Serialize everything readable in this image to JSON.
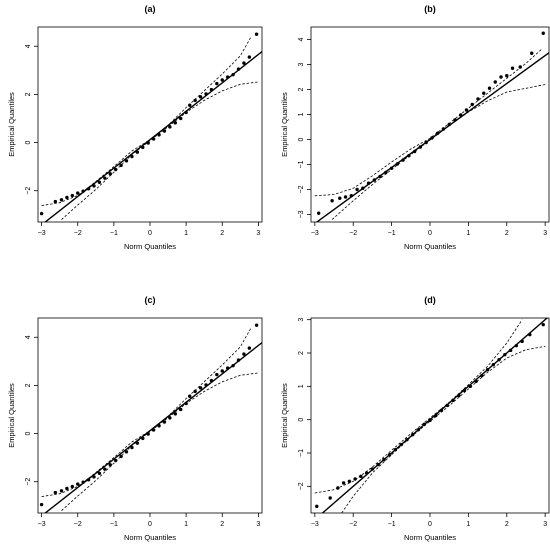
{
  "chart_data": [
    {
      "type": "scatter",
      "title": "(a)",
      "xlabel": "Norm Quantiles",
      "ylabel": "Empirical Quantiles",
      "xlim": [
        -3.1,
        3.1
      ],
      "ylim": [
        -3.3,
        4.8
      ],
      "xticks": [
        -3,
        -2,
        -1,
        0,
        1,
        2,
        3
      ],
      "yticks": [
        -2,
        0,
        2,
        4
      ],
      "ref_line": {
        "intercept": 0.12,
        "slope": 1.18
      },
      "envelope": {
        "lower": [
          [
            -2.45,
            -3.2
          ],
          [
            -2.0,
            -2.6
          ],
          [
            -1.5,
            -1.95
          ],
          [
            -1.0,
            -1.23
          ],
          [
            -0.5,
            -0.5
          ],
          [
            0,
            0.08
          ],
          [
            0.5,
            0.66
          ],
          [
            1.0,
            1.25
          ],
          [
            1.5,
            1.75
          ],
          [
            2.0,
            2.15
          ],
          [
            2.5,
            2.42
          ],
          [
            3.0,
            2.52
          ]
        ],
        "upper": [
          [
            -3.0,
            -2.62
          ],
          [
            -2.5,
            -2.5
          ],
          [
            -2.0,
            -2.2
          ],
          [
            -1.5,
            -1.62
          ],
          [
            -1.0,
            -1.0
          ],
          [
            -0.5,
            -0.35
          ],
          [
            0,
            0.12
          ],
          [
            0.5,
            0.72
          ],
          [
            1.0,
            1.45
          ],
          [
            1.5,
            2.15
          ],
          [
            2.0,
            2.85
          ],
          [
            2.5,
            3.6
          ],
          [
            2.8,
            4.4
          ]
        ]
      },
      "points": [
        [
          -3.0,
          -2.95
        ],
        [
          -2.62,
          -2.45
        ],
        [
          -2.45,
          -2.38
        ],
        [
          -2.3,
          -2.28
        ],
        [
          -2.15,
          -2.2
        ],
        [
          -2.0,
          -2.1
        ],
        [
          -1.85,
          -2.02
        ],
        [
          -1.7,
          -1.92
        ],
        [
          -1.55,
          -1.8
        ],
        [
          -1.4,
          -1.65
        ],
        [
          -1.25,
          -1.48
        ],
        [
          -1.1,
          -1.3
        ],
        [
          -0.95,
          -1.12
        ],
        [
          -0.8,
          -0.95
        ],
        [
          -0.65,
          -0.76
        ],
        [
          -0.5,
          -0.58
        ],
        [
          -0.35,
          -0.4
        ],
        [
          -0.2,
          -0.2
        ],
        [
          -0.05,
          -0.02
        ],
        [
          0.1,
          0.15
        ],
        [
          0.25,
          0.32
        ],
        [
          0.4,
          0.48
        ],
        [
          0.55,
          0.65
        ],
        [
          0.7,
          0.82
        ],
        [
          0.85,
          1.0
        ],
        [
          1.0,
          1.25
        ],
        [
          1.1,
          1.55
        ],
        [
          1.25,
          1.75
        ],
        [
          1.4,
          1.9
        ],
        [
          1.55,
          2.02
        ],
        [
          1.7,
          2.2
        ],
        [
          1.85,
          2.45
        ],
        [
          2.0,
          2.6
        ],
        [
          2.15,
          2.72
        ],
        [
          2.3,
          2.82
        ],
        [
          2.45,
          3.05
        ],
        [
          2.6,
          3.3
        ],
        [
          2.75,
          3.55
        ],
        [
          2.95,
          4.5
        ]
      ]
    },
    {
      "type": "scatter",
      "title": "(b)",
      "xlabel": "Norm Quantiles",
      "ylabel": "Empirical Quantiles",
      "xlim": [
        -3.1,
        3.1
      ],
      "ylim": [
        -3.3,
        4.5
      ],
      "xticks": [
        -3,
        -2,
        -1,
        0,
        1,
        2,
        3
      ],
      "yticks": [
        -3,
        -2,
        -1,
        0,
        1,
        2,
        3,
        4
      ],
      "ref_line": {
        "intercept": 0.0,
        "slope": 1.12
      },
      "envelope": {
        "lower": [
          [
            -2.55,
            -3.2
          ],
          [
            -2.0,
            -2.45
          ],
          [
            -1.5,
            -1.8
          ],
          [
            -1.0,
            -1.2
          ],
          [
            -0.5,
            -0.6
          ],
          [
            0,
            -0.02
          ],
          [
            0.5,
            0.55
          ],
          [
            1.0,
            1.1
          ],
          [
            1.5,
            1.55
          ],
          [
            2.0,
            1.9
          ],
          [
            2.5,
            2.05
          ],
          [
            3.0,
            2.2
          ]
        ],
        "upper": [
          [
            -3.0,
            -2.25
          ],
          [
            -2.5,
            -2.2
          ],
          [
            -2.0,
            -1.95
          ],
          [
            -1.5,
            -1.45
          ],
          [
            -1.0,
            -0.9
          ],
          [
            -0.5,
            -0.38
          ],
          [
            0,
            0.05
          ],
          [
            0.5,
            0.65
          ],
          [
            1.0,
            1.25
          ],
          [
            1.5,
            1.85
          ],
          [
            2.0,
            2.45
          ],
          [
            2.5,
            3.05
          ],
          [
            2.9,
            3.6
          ]
        ]
      },
      "points": [
        [
          -2.9,
          -2.95
        ],
        [
          -2.55,
          -2.45
        ],
        [
          -2.35,
          -2.35
        ],
        [
          -2.2,
          -2.3
        ],
        [
          -2.05,
          -2.25
        ],
        [
          -1.9,
          -2.0
        ],
        [
          -1.75,
          -1.95
        ],
        [
          -1.6,
          -1.75
        ],
        [
          -1.45,
          -1.62
        ],
        [
          -1.3,
          -1.48
        ],
        [
          -1.15,
          -1.32
        ],
        [
          -1.0,
          -1.15
        ],
        [
          -0.85,
          -0.98
        ],
        [
          -0.7,
          -0.82
        ],
        [
          -0.55,
          -0.65
        ],
        [
          -0.4,
          -0.48
        ],
        [
          -0.25,
          -0.3
        ],
        [
          -0.1,
          -0.12
        ],
        [
          0.05,
          0.06
        ],
        [
          0.2,
          0.25
        ],
        [
          0.35,
          0.42
        ],
        [
          0.5,
          0.6
        ],
        [
          0.65,
          0.78
        ],
        [
          0.8,
          0.98
        ],
        [
          0.95,
          1.18
        ],
        [
          1.1,
          1.4
        ],
        [
          1.25,
          1.62
        ],
        [
          1.4,
          1.85
        ],
        [
          1.55,
          2.05
        ],
        [
          1.7,
          2.3
        ],
        [
          1.85,
          2.5
        ],
        [
          2.0,
          2.55
        ],
        [
          2.15,
          2.85
        ],
        [
          2.35,
          2.9
        ],
        [
          2.65,
          3.45
        ],
        [
          2.95,
          4.25
        ]
      ]
    },
    {
      "type": "scatter",
      "title": "(c)",
      "xlabel": "Norm Quantiles",
      "ylabel": "Empirical Quantiles",
      "xlim": [
        -3.1,
        3.1
      ],
      "ylim": [
        -3.3,
        4.8
      ],
      "xticks": [
        -3,
        -2,
        -1,
        0,
        1,
        2,
        3
      ],
      "yticks": [
        -2,
        0,
        2,
        4
      ],
      "ref_line": {
        "intercept": 0.12,
        "slope": 1.18
      },
      "envelope": {
        "lower": [
          [
            -2.45,
            -3.2
          ],
          [
            -2.0,
            -2.6
          ],
          [
            -1.5,
            -1.95
          ],
          [
            -1.0,
            -1.23
          ],
          [
            -0.5,
            -0.5
          ],
          [
            0,
            0.08
          ],
          [
            0.5,
            0.66
          ],
          [
            1.0,
            1.25
          ],
          [
            1.5,
            1.75
          ],
          [
            2.0,
            2.15
          ],
          [
            2.5,
            2.42
          ],
          [
            3.0,
            2.52
          ]
        ],
        "upper": [
          [
            -3.0,
            -2.62
          ],
          [
            -2.5,
            -2.5
          ],
          [
            -2.0,
            -2.2
          ],
          [
            -1.5,
            -1.62
          ],
          [
            -1.0,
            -1.0
          ],
          [
            -0.5,
            -0.35
          ],
          [
            0,
            0.12
          ],
          [
            0.5,
            0.72
          ],
          [
            1.0,
            1.45
          ],
          [
            1.5,
            2.15
          ],
          [
            2.0,
            2.85
          ],
          [
            2.5,
            3.6
          ],
          [
            2.8,
            4.4
          ]
        ]
      },
      "points": [
        [
          -3.0,
          -2.95
        ],
        [
          -2.62,
          -2.45
        ],
        [
          -2.45,
          -2.38
        ],
        [
          -2.3,
          -2.28
        ],
        [
          -2.15,
          -2.2
        ],
        [
          -2.0,
          -2.1
        ],
        [
          -1.85,
          -2.02
        ],
        [
          -1.7,
          -1.92
        ],
        [
          -1.55,
          -1.8
        ],
        [
          -1.4,
          -1.65
        ],
        [
          -1.25,
          -1.48
        ],
        [
          -1.1,
          -1.3
        ],
        [
          -0.95,
          -1.12
        ],
        [
          -0.8,
          -0.95
        ],
        [
          -0.65,
          -0.76
        ],
        [
          -0.5,
          -0.58
        ],
        [
          -0.35,
          -0.4
        ],
        [
          -0.2,
          -0.2
        ],
        [
          -0.05,
          -0.02
        ],
        [
          0.1,
          0.15
        ],
        [
          0.25,
          0.32
        ],
        [
          0.4,
          0.48
        ],
        [
          0.55,
          0.65
        ],
        [
          0.7,
          0.82
        ],
        [
          0.85,
          1.0
        ],
        [
          1.0,
          1.25
        ],
        [
          1.1,
          1.55
        ],
        [
          1.25,
          1.75
        ],
        [
          1.4,
          1.9
        ],
        [
          1.55,
          2.02
        ],
        [
          1.7,
          2.2
        ],
        [
          1.85,
          2.45
        ],
        [
          2.0,
          2.6
        ],
        [
          2.15,
          2.72
        ],
        [
          2.3,
          2.82
        ],
        [
          2.45,
          3.05
        ],
        [
          2.6,
          3.3
        ],
        [
          2.75,
          3.55
        ],
        [
          2.95,
          4.5
        ]
      ]
    },
    {
      "type": "scatter",
      "title": "(d)",
      "xlabel": "Norm Quantiles",
      "ylabel": "Empirical Quantiles",
      "xlim": [
        -3.1,
        3.1
      ],
      "ylim": [
        -2.8,
        3.05
      ],
      "xticks": [
        -3,
        -2,
        -1,
        0,
        1,
        2,
        3
      ],
      "yticks": [
        -2,
        -1,
        0,
        1,
        2,
        3
      ],
      "ref_line": {
        "intercept": 0.0,
        "slope": 1.0
      },
      "envelope": {
        "lower": [
          [
            -2.3,
            -2.8
          ],
          [
            -2.0,
            -2.3
          ],
          [
            -1.5,
            -1.6
          ],
          [
            -1.0,
            -1.05
          ],
          [
            -0.5,
            -0.52
          ],
          [
            0,
            -0.05
          ],
          [
            0.5,
            0.42
          ],
          [
            1.0,
            0.92
          ],
          [
            1.5,
            1.42
          ],
          [
            2.0,
            1.85
          ],
          [
            2.5,
            2.1
          ],
          [
            3.0,
            2.2
          ]
        ],
        "upper": [
          [
            -3.0,
            -2.2
          ],
          [
            -2.5,
            -2.1
          ],
          [
            -2.0,
            -1.85
          ],
          [
            -1.5,
            -1.42
          ],
          [
            -1.0,
            -0.92
          ],
          [
            -0.5,
            -0.42
          ],
          [
            0,
            0.05
          ],
          [
            0.5,
            0.52
          ],
          [
            1.0,
            1.05
          ],
          [
            1.5,
            1.6
          ],
          [
            2.0,
            2.3
          ],
          [
            2.4,
            3.0
          ]
        ]
      },
      "points": [
        [
          -2.95,
          -2.6
        ],
        [
          -2.6,
          -2.35
        ],
        [
          -2.4,
          -2.05
        ],
        [
          -2.25,
          -1.9
        ],
        [
          -2.1,
          -1.85
        ],
        [
          -1.95,
          -1.78
        ],
        [
          -1.8,
          -1.7
        ],
        [
          -1.65,
          -1.6
        ],
        [
          -1.5,
          -1.48
        ],
        [
          -1.35,
          -1.35
        ],
        [
          -1.2,
          -1.2
        ],
        [
          -1.05,
          -1.05
        ],
        [
          -0.9,
          -0.9
        ],
        [
          -0.75,
          -0.75
        ],
        [
          -0.6,
          -0.6
        ],
        [
          -0.45,
          -0.45
        ],
        [
          -0.3,
          -0.3
        ],
        [
          -0.15,
          -0.14
        ],
        [
          0.0,
          -0.02
        ],
        [
          0.15,
          0.12
        ],
        [
          0.3,
          0.28
        ],
        [
          0.45,
          0.43
        ],
        [
          0.6,
          0.58
        ],
        [
          0.75,
          0.72
        ],
        [
          0.9,
          0.88
        ],
        [
          1.05,
          1.0
        ],
        [
          1.2,
          1.15
        ],
        [
          1.35,
          1.32
        ],
        [
          1.5,
          1.5
        ],
        [
          1.65,
          1.65
        ],
        [
          1.8,
          1.8
        ],
        [
          1.95,
          1.95
        ],
        [
          2.1,
          2.08
        ],
        [
          2.25,
          2.22
        ],
        [
          2.4,
          2.35
        ],
        [
          2.6,
          2.55
        ],
        [
          2.95,
          2.85
        ]
      ]
    }
  ]
}
